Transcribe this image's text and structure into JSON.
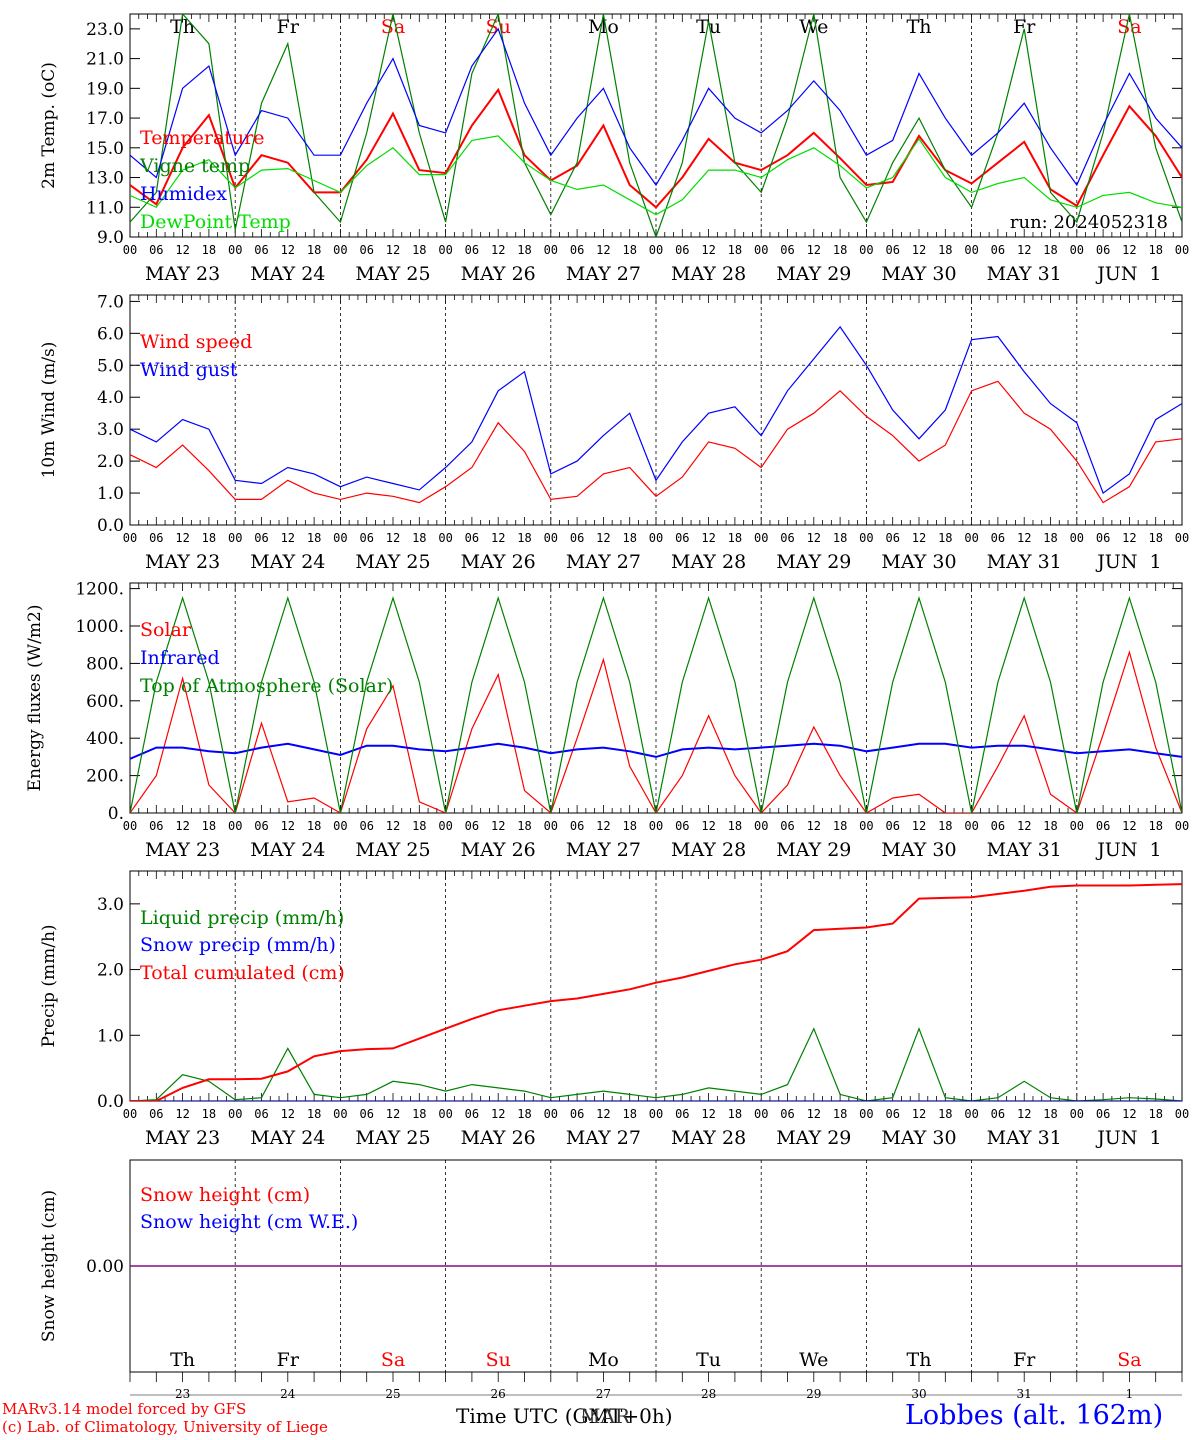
{
  "chart_data": [
    {
      "type": "line",
      "ylabel": "2m Temp. (oC)",
      "ylim": [
        9.0,
        24.0
      ],
      "yticks": [
        "23.0",
        "21.0",
        "19.0",
        "17.0",
        "15.0",
        "13.0",
        "11.0",
        "9.0"
      ],
      "day_names": [
        "Th",
        "Fr",
        "Sa",
        "Su",
        "Mo",
        "Tu",
        "We",
        "Th",
        "Fr",
        "Sa"
      ],
      "run_label": "run: 2024052318",
      "x_hours": [
        0,
        6,
        12,
        18,
        24,
        30,
        36,
        42,
        48,
        54,
        60,
        66,
        72,
        78,
        84,
        90,
        96,
        102,
        108,
        114,
        120,
        126,
        132,
        138,
        144,
        150,
        156,
        162,
        168,
        174,
        180,
        186,
        192,
        198,
        204,
        210,
        216,
        222,
        228,
        234,
        240
      ],
      "series": [
        {
          "name": "Temperature",
          "color": "#ff0000",
          "values": [
            12.5,
            11.2,
            15.0,
            17.2,
            12.3,
            14.5,
            14.0,
            12.0,
            12.0,
            14.2,
            17.3,
            13.5,
            13.3,
            16.5,
            18.9,
            14.5,
            12.8,
            13.8,
            16.5,
            12.5,
            11.0,
            13.0,
            15.6,
            14.0,
            13.5,
            14.5,
            16.0,
            14.3,
            12.5,
            12.7,
            15.8,
            13.5,
            12.6,
            14.0,
            15.4,
            12.2,
            11.1,
            14.5,
            17.8,
            15.8,
            13.0
          ]
        },
        {
          "name": "Vigne temp",
          "color": "#008000",
          "values": [
            10.0,
            12.0,
            24.0,
            22.0,
            9.5,
            18.0,
            22.0,
            12.0,
            10.0,
            16.0,
            24.0,
            16.0,
            10.0,
            20.0,
            24.0,
            14.0,
            10.5,
            14.0,
            24.0,
            14.0,
            9.0,
            14.0,
            23.5,
            14.0,
            12.0,
            17.0,
            24.0,
            13.0,
            10.0,
            14.0,
            17.0,
            13.5,
            11.0,
            16.0,
            23.0,
            12.0,
            10.0,
            16.0,
            24.0,
            15.0,
            10.0
          ]
        },
        {
          "name": "Humidex",
          "color": "#0000ff",
          "values": [
            14.5,
            13.0,
            19.0,
            20.5,
            14.5,
            17.5,
            17.0,
            14.5,
            14.5,
            18.0,
            21.0,
            16.5,
            16.0,
            20.5,
            23.0,
            18.0,
            14.5,
            17.0,
            19.0,
            15.0,
            12.5,
            15.5,
            19.0,
            17.0,
            16.0,
            17.5,
            19.5,
            17.5,
            14.5,
            15.5,
            20.0,
            17.0,
            14.5,
            16.0,
            18.0,
            15.0,
            12.5,
            16.5,
            20.0,
            17.0,
            15.0
          ]
        },
        {
          "name": "DewPoint Temp",
          "color": "#00dd00",
          "values": [
            11.8,
            11.0,
            13.5,
            14.2,
            12.3,
            13.5,
            13.6,
            12.8,
            12.0,
            13.8,
            15.0,
            13.2,
            13.2,
            15.5,
            15.8,
            14.0,
            12.8,
            12.2,
            12.5,
            11.5,
            10.5,
            11.5,
            13.5,
            13.5,
            13.0,
            14.2,
            15.0,
            13.8,
            12.3,
            13.0,
            15.6,
            13.0,
            12.0,
            12.6,
            13.0,
            11.5,
            11.0,
            11.8,
            12.0,
            11.3,
            11.0
          ]
        }
      ]
    },
    {
      "type": "line",
      "ylabel": "10m Wind (m/s)",
      "ylim": [
        0.0,
        7.0
      ],
      "yticks": [
        "7.0",
        "6.0",
        "5.0",
        "4.0",
        "3.0",
        "2.0",
        "1.0",
        "0.0"
      ],
      "x_hours": [
        0,
        6,
        12,
        18,
        24,
        30,
        36,
        42,
        48,
        54,
        60,
        66,
        72,
        78,
        84,
        90,
        96,
        102,
        108,
        114,
        120,
        126,
        132,
        138,
        144,
        150,
        156,
        162,
        168,
        174,
        180,
        186,
        192,
        198,
        204,
        210,
        216,
        222,
        228,
        234,
        240
      ],
      "series": [
        {
          "name": "Wind speed",
          "color": "#ff0000",
          "values": [
            2.2,
            1.8,
            2.5,
            1.7,
            0.8,
            0.8,
            1.4,
            1.0,
            0.8,
            1.0,
            0.9,
            0.7,
            1.2,
            1.8,
            3.2,
            2.3,
            0.8,
            0.9,
            1.6,
            1.8,
            0.9,
            1.5,
            2.6,
            2.4,
            1.8,
            3.0,
            3.5,
            4.2,
            3.4,
            2.8,
            2.0,
            2.5,
            4.2,
            4.5,
            3.5,
            3.0,
            2.0,
            0.7,
            1.2,
            2.6,
            2.7
          ]
        },
        {
          "name": "Wind gust",
          "color": "#0000ff",
          "values": [
            3.0,
            2.6,
            3.3,
            3.0,
            1.4,
            1.3,
            1.8,
            1.6,
            1.2,
            1.5,
            1.3,
            1.1,
            1.8,
            2.6,
            4.2,
            4.8,
            1.6,
            2.0,
            2.8,
            3.5,
            1.4,
            2.6,
            3.5,
            3.7,
            2.8,
            4.2,
            5.2,
            6.2,
            5.0,
            3.6,
            2.7,
            3.6,
            5.8,
            5.9,
            4.8,
            3.8,
            3.2,
            1.0,
            1.6,
            3.3,
            3.8
          ]
        }
      ]
    },
    {
      "type": "line",
      "ylabel": "Energy fluxes (W/m2)",
      "ylim": [
        0,
        1200
      ],
      "yticks": [
        "1200.",
        "1000.",
        "800.",
        "600.",
        "400.",
        "200.",
        "0."
      ],
      "x_hours": [
        0,
        6,
        12,
        18,
        24,
        30,
        36,
        42,
        48,
        54,
        60,
        66,
        72,
        78,
        84,
        90,
        96,
        102,
        108,
        114,
        120,
        126,
        132,
        138,
        144,
        150,
        156,
        162,
        168,
        174,
        180,
        186,
        192,
        198,
        204,
        210,
        216,
        222,
        228,
        234,
        240
      ],
      "series": [
        {
          "name": "Solar",
          "color": "#ff0000",
          "values": [
            0,
            200,
            720,
            150,
            0,
            480,
            60,
            80,
            0,
            450,
            680,
            60,
            0,
            450,
            740,
            120,
            0,
            400,
            820,
            250,
            0,
            200,
            520,
            200,
            0,
            150,
            460,
            200,
            0,
            80,
            100,
            0,
            0,
            250,
            520,
            100,
            0,
            420,
            860,
            350,
            0
          ]
        },
        {
          "name": "Infrared",
          "color": "#0000ff",
          "values": [
            290,
            350,
            350,
            330,
            320,
            350,
            370,
            340,
            310,
            360,
            360,
            340,
            330,
            350,
            370,
            350,
            320,
            340,
            350,
            330,
            300,
            340,
            350,
            340,
            350,
            360,
            370,
            360,
            330,
            350,
            370,
            370,
            350,
            360,
            360,
            340,
            320,
            330,
            340,
            320,
            300
          ]
        },
        {
          "name": "Top of Atmosphere (Solar)",
          "color": "#008000",
          "values": [
            0,
            700,
            1150,
            700,
            0,
            700,
            1150,
            700,
            0,
            700,
            1150,
            700,
            0,
            700,
            1150,
            700,
            0,
            700,
            1150,
            700,
            0,
            700,
            1150,
            700,
            0,
            700,
            1150,
            700,
            0,
            700,
            1150,
            700,
            0,
            700,
            1150,
            700,
            0,
            700,
            1150,
            700,
            0
          ]
        }
      ]
    },
    {
      "type": "line",
      "ylabel": "Precip (mm/h)",
      "ylim": [
        0.0,
        3.5
      ],
      "yticks": [
        "3.0",
        "2.0",
        "1.0",
        "0.0"
      ],
      "x_hours": [
        0,
        6,
        12,
        18,
        24,
        30,
        36,
        42,
        48,
        54,
        60,
        66,
        72,
        78,
        84,
        90,
        96,
        102,
        108,
        114,
        120,
        126,
        132,
        138,
        144,
        150,
        156,
        162,
        168,
        174,
        180,
        186,
        192,
        198,
        204,
        210,
        216,
        222,
        228,
        234,
        240
      ],
      "series": [
        {
          "name": "Liquid precip (mm/h)",
          "color": "#008000",
          "values": [
            0.0,
            0.02,
            0.4,
            0.3,
            0.02,
            0.05,
            0.8,
            0.1,
            0.05,
            0.1,
            0.3,
            0.25,
            0.15,
            0.25,
            0.2,
            0.15,
            0.05,
            0.1,
            0.15,
            0.1,
            0.05,
            0.1,
            0.2,
            0.15,
            0.1,
            0.25,
            1.1,
            0.1,
            0.0,
            0.05,
            1.1,
            0.05,
            0.0,
            0.05,
            0.3,
            0.05,
            0.0,
            0.02,
            0.05,
            0.03,
            0.0
          ]
        },
        {
          "name": "Snow precip (mm/h)",
          "color": "#0000ff",
          "values": [
            0,
            0,
            0,
            0,
            0,
            0,
            0,
            0,
            0,
            0,
            0,
            0,
            0,
            0,
            0,
            0,
            0,
            0,
            0,
            0,
            0,
            0,
            0,
            0,
            0,
            0,
            0,
            0,
            0,
            0,
            0,
            0,
            0,
            0,
            0,
            0,
            0,
            0,
            0,
            0,
            0
          ]
        },
        {
          "name": "Total cumulated (cm)",
          "color": "#ff0000",
          "values": [
            0.0,
            0.0,
            0.2,
            0.33,
            0.33,
            0.34,
            0.45,
            0.68,
            0.76,
            0.79,
            0.8,
            0.95,
            1.1,
            1.25,
            1.38,
            1.45,
            1.52,
            1.56,
            1.63,
            1.7,
            1.8,
            1.88,
            1.98,
            2.08,
            2.15,
            2.28,
            2.6,
            2.62,
            2.64,
            2.7,
            3.08,
            3.09,
            3.1,
            3.15,
            3.2,
            3.26,
            3.28,
            3.28,
            3.28,
            3.29,
            3.3
          ]
        }
      ]
    },
    {
      "type": "line",
      "ylabel": "Snow height (cm)",
      "yticks": [
        "0.00"
      ],
      "day_names": [
        "Th",
        "Fr",
        "Sa",
        "Su",
        "Mo",
        "Tu",
        "We",
        "Th",
        "Fr",
        "Sa"
      ],
      "day_numbers": [
        "23",
        "24",
        "25",
        "26",
        "27",
        "28",
        "29",
        "30",
        "31",
        "1"
      ],
      "series": [
        {
          "name": "Snow height (cm)",
          "color": "#ff0000",
          "values": [
            0,
            0
          ]
        },
        {
          "name": "Snow height (cm W.E.)",
          "color": "#0000ff",
          "values": [
            0,
            0
          ]
        }
      ]
    }
  ],
  "x_axis": {
    "hour_labels": [
      "00",
      "06",
      "12",
      "18"
    ],
    "final_hour_label": "00",
    "day_labels": [
      "MAY 23",
      "MAY 24",
      "MAY 25",
      "MAY 26",
      "MAY 27",
      "MAY 28",
      "MAY 29",
      "MAY 30",
      "MAY 31",
      "JUN  1"
    ],
    "xlabel": "Time UTC (GMT+0h)",
    "xlabel_overlap": "MAR",
    "weekend_color": "#ff0000",
    "weekend_days": [
      2,
      3,
      9
    ]
  },
  "footer": {
    "model_line": "MARv3.14 model forced by GFS",
    "credit_line": "(c) Lab. of Climatology, University of Liege",
    "station": "Lobbes (alt. 162m)"
  }
}
